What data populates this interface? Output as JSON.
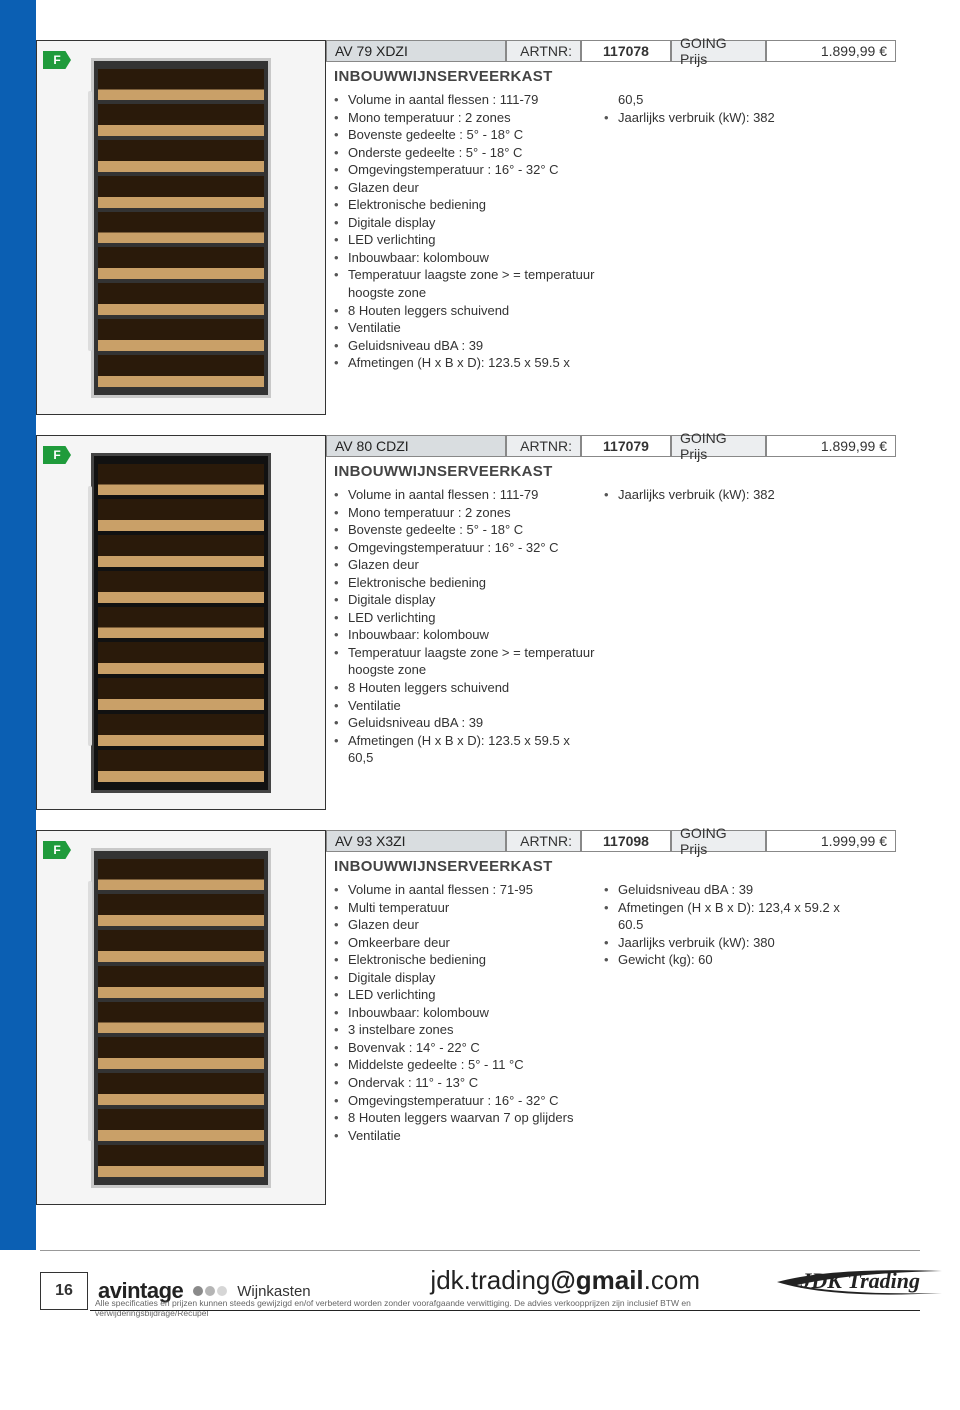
{
  "flabel": "F",
  "artnr_label": "ARTNR:",
  "price_label": "GOING Prijs",
  "products": [
    {
      "model": "AV  79 XDZI",
      "artnr": "117078",
      "price": "1.899,99 €",
      "category": "INBOUWWIJNSERVEERKAST",
      "img_style": "steel",
      "col1": [
        "Volume in aantal flessen : 111-79",
        "Mono temperatuur : 2 zones",
        "Bovenste gedeelte : 5° - 18° C",
        "Onderste gedeelte : 5° - 18° C",
        "Omgevingstemperatuur : 16° - 32° C",
        "Glazen deur",
        "Elektronische bediening",
        "Digitale display",
        "LED verlichting",
        "Inbouwbaar: kolombouw",
        "Temperatuur laagste zone > = temperatu­ur hoogste zone",
        "8 Houten leggers schuivend",
        "Ventilatie",
        "Geluidsniveau dBA : 39",
        "Afmetingen (H x B x D): 123.5 x 59.5 x"
      ],
      "col2_pre": "60,5",
      "col2": [
        "Jaarlijks verbruik (kW): 382"
      ]
    },
    {
      "model": "AV  80 CDZI",
      "artnr": "117079",
      "price": "1.899,99 €",
      "category": "INBOUWWIJNSERVEERKAST",
      "img_style": "black",
      "col1": [
        "Volume in aantal flessen : 111-79",
        "Mono temperatuur : 2 zones",
        "Bovenste gedeelte : 5° - 18° C",
        "Omgevingstemperatuur : 16° - 32° C",
        "Glazen deur",
        "Elektronische bediening",
        "Digitale display",
        "LED verlichting",
        "Inbouwbaar: kolombouw",
        "Temperatuur laagste zone > = temperatu­ur hoogste zone",
        "8 Houten leggers schuivend",
        "Ventilatie",
        "Geluidsniveau dBA : 39",
        "Afmetingen (H x B x D): 123.5 x 59.5 x 60,5"
      ],
      "col2_pre": "",
      "col2": [
        "Jaarlijks verbruik (kW): 382"
      ]
    },
    {
      "model": "AV 93 X3ZI",
      "artnr": "117098",
      "price": "1.999,99 €",
      "category": "INBOUWWIJNSERVEERKAST",
      "img_style": "steel",
      "col1": [
        "Volume in aantal flessen : 71-95",
        "Multi temperatuur",
        "Glazen deur",
        "Omkeerbare deur",
        "Elektronische bediening",
        "Digitale display",
        "LED verlichting",
        "Inbouwbaar: kolombouw",
        "3 instelbare zones",
        "Bovenvak : 14° - 22° C",
        "Middelste gedeelte : 5° - 11 °C",
        "Ondervak : 11° - 13° C",
        "Omgevingstemperatuur : 16° - 32° C",
        "8 Houten leggers waarvan 7 op glijders",
        "Ventilatie"
      ],
      "col2_pre": "",
      "col2": [
        "Geluidsniveau dBA : 39",
        "Afmetingen (H x B x D): 123,4 x 59.2 x 60.5",
        "Jaarlijks verbruik (kW): 380",
        "Gewicht (kg): 60"
      ]
    }
  ],
  "footer": {
    "pagenum": "16",
    "brand": "avintage",
    "dot_colors": [
      "#8a8a8a",
      "#b5b5b5",
      "#d6d6d6"
    ],
    "category": "Wijnkasten",
    "email_left": "jdk.trading",
    "email_bold": "@gmail",
    "email_right": ".com",
    "logo": "JDK Trading",
    "disclaimer": "Alle specificaties en prijzen kunnen steeds gewijzigd en/of verbeterd worden zonder voorafgaande verwittiging. De advies verkoopprijzen zijn inclusief BTW en verwijderingsbijdrage/Recupel"
  }
}
